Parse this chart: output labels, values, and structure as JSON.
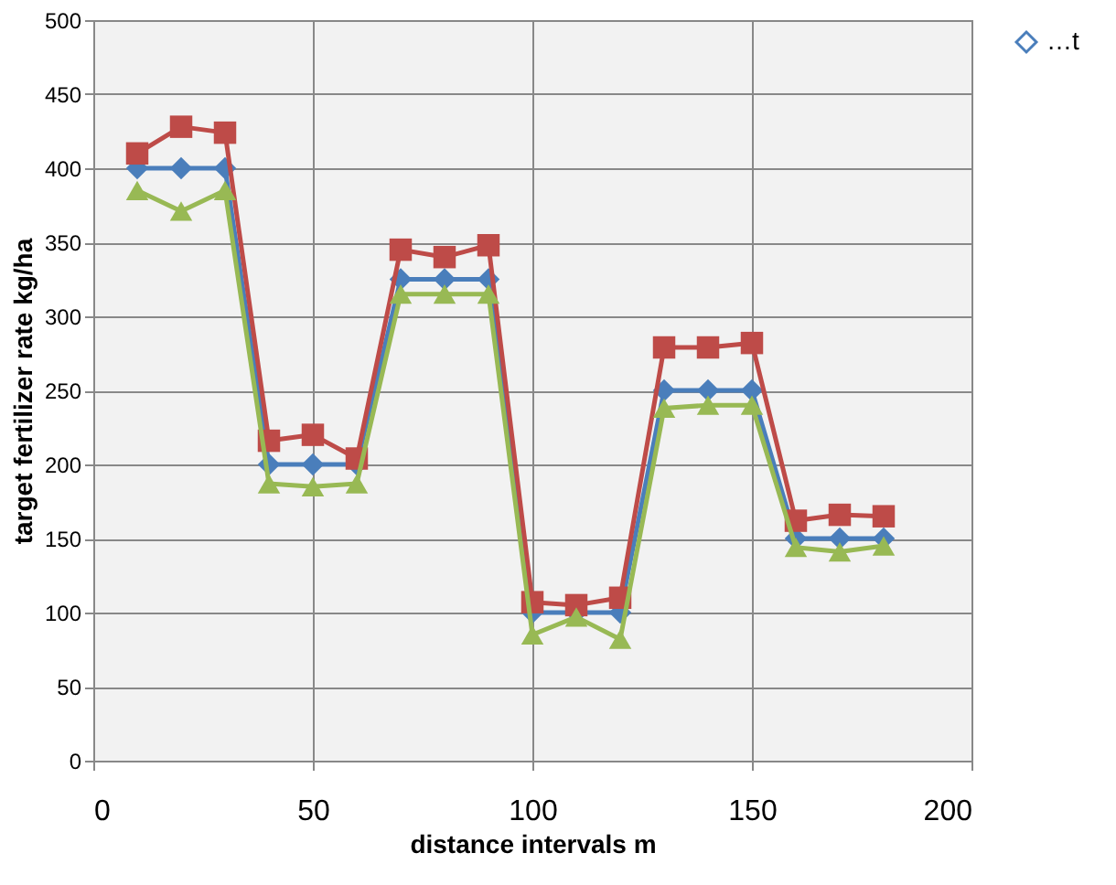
{
  "chart_data": {
    "type": "line",
    "xlabel": "distance intervals  m",
    "ylabel": "target fertilizer rate  kg/ha",
    "x": [
      10,
      20,
      30,
      40,
      50,
      60,
      70,
      80,
      90,
      100,
      110,
      120,
      130,
      140,
      150,
      160,
      170,
      180
    ],
    "series": [
      {
        "name": "…t",
        "color": "#4a7ebb",
        "marker": "diamond",
        "values": [
          400,
          400,
          400,
          200,
          200,
          200,
          325,
          325,
          325,
          100,
          100,
          100,
          250,
          250,
          250,
          150,
          150,
          150
        ]
      },
      {
        "color": "#be4b48",
        "marker": "square",
        "values": [
          410,
          428,
          424,
          216,
          220,
          204,
          345,
          340,
          348,
          107,
          105,
          110,
          279,
          279,
          282,
          162,
          166,
          165
        ]
      },
      {
        "color": "#98b954",
        "marker": "triangle",
        "values": [
          385,
          371,
          385,
          187,
          185,
          187,
          315,
          315,
          315,
          85,
          97,
          82,
          238,
          240,
          240,
          144,
          141,
          145
        ]
      }
    ],
    "xlim": [
      0,
      200
    ],
    "xticks": [
      0,
      50,
      100,
      150,
      200
    ],
    "ylim": [
      0,
      500
    ],
    "yticks": [
      0,
      50,
      100,
      150,
      200,
      250,
      300,
      350,
      400,
      450,
      500
    ],
    "grid": true,
    "legend": "right"
  }
}
